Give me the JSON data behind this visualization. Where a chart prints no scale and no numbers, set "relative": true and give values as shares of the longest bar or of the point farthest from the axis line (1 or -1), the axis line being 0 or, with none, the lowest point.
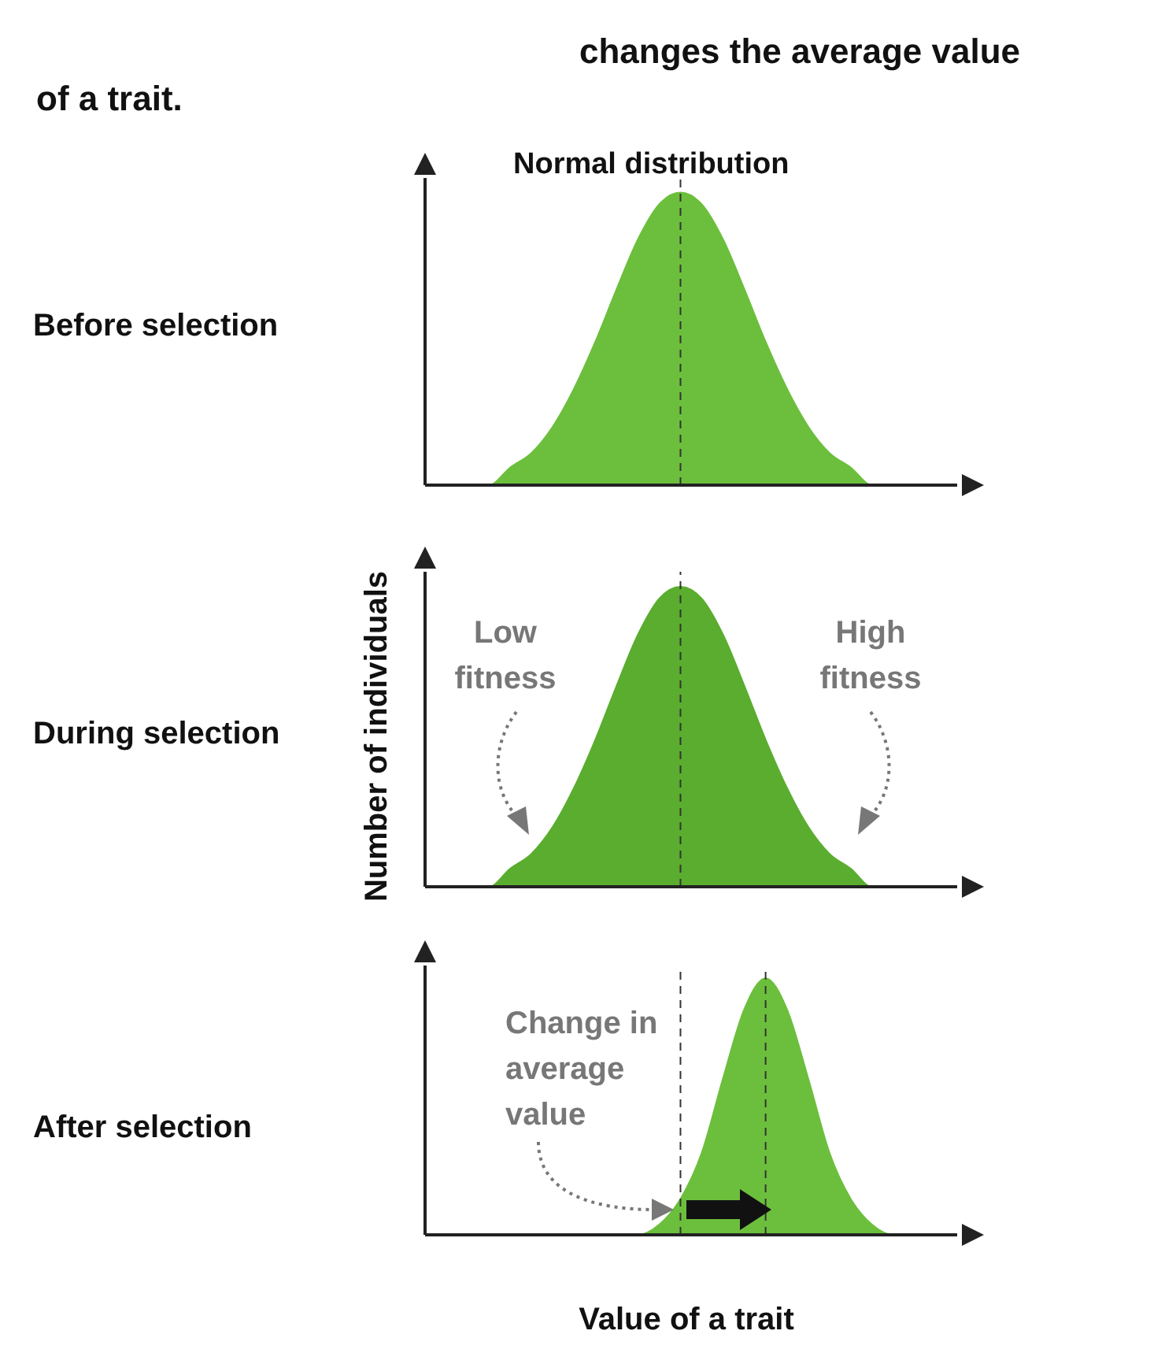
{
  "chart_data": [
    {
      "type": "area",
      "title": "changes the average value of a trait.",
      "annotations": [
        "Normal distribution",
        "Before selection"
      ],
      "relative": true,
      "color": "#6cbf3c",
      "categories": [
        null,
        null,
        null,
        null,
        null,
        null,
        null,
        null,
        null,
        null,
        null,
        null,
        null,
        null,
        null,
        null,
        null,
        null,
        null,
        null,
        null,
        null,
        null,
        null,
        null,
        null
      ],
      "values": [
        0,
        0,
        0,
        0,
        0.06,
        0.11,
        0.2,
        0.33,
        0.49,
        0.67,
        0.84,
        0.96,
        1,
        0.96,
        0.84,
        0.67,
        0.49,
        0.33,
        0.2,
        0.11,
        0.06,
        0,
        0,
        0,
        0,
        0
      ]
    },
    {
      "type": "area",
      "ylabel": "Number of individuals",
      "annotations": [
        "During selection",
        "Low fitness",
        "High fitness"
      ],
      "relative": true,
      "color": "#5aad2e",
      "categories": [
        null,
        null,
        null,
        null,
        null,
        null,
        null,
        null,
        null,
        null,
        null,
        null,
        null,
        null,
        null,
        null,
        null,
        null,
        null,
        null,
        null,
        null,
        null,
        null,
        null,
        null
      ],
      "values": [
        0,
        0,
        0,
        0,
        0.06,
        0.11,
        0.2,
        0.33,
        0.49,
        0.67,
        0.84,
        0.96,
        1,
        0.96,
        0.84,
        0.67,
        0.49,
        0.33,
        0.2,
        0.11,
        0.06,
        0,
        0,
        0,
        0,
        0
      ]
    },
    {
      "type": "area",
      "xlabel": "Value of a trait",
      "annotations": [
        "After selection",
        "Change in average value"
      ],
      "relative": true,
      "color": "#6cbf3c",
      "categories": [
        null,
        null,
        null,
        null,
        null,
        null,
        null,
        null,
        null,
        null,
        null,
        null,
        null,
        null,
        null,
        null,
        null,
        null,
        null,
        null,
        null,
        null,
        null,
        null,
        null,
        null
      ],
      "values": [
        0,
        0,
        0,
        0,
        0,
        0,
        0,
        0,
        0,
        0,
        0,
        0.04,
        0.14,
        0.32,
        0.61,
        0.88,
        1,
        0.88,
        0.61,
        0.32,
        0.14,
        0.04,
        0,
        0,
        0,
        0
      ]
    }
  ]
}
